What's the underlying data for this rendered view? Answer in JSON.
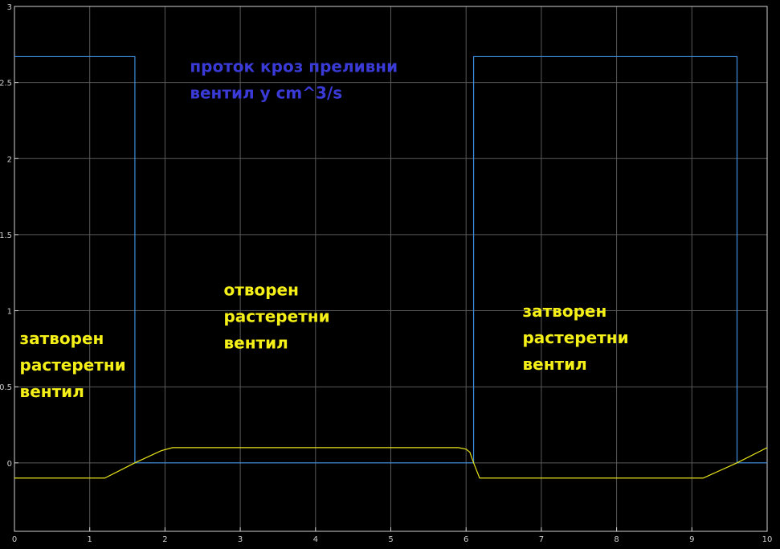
{
  "chart_data": {
    "type": "line",
    "xlim": [
      0,
      10
    ],
    "ylim": [
      -0.45,
      3
    ],
    "grid": true,
    "background": "#000000",
    "grid_color": "#5a5a5a",
    "axis_color": "#d0d0d0",
    "x_ticks": [
      0,
      1,
      2,
      3,
      4,
      5,
      6,
      7,
      8,
      9,
      10
    ],
    "x_tick_labels": [
      "0",
      "1",
      "2",
      "3",
      "4",
      "5",
      "6",
      "7",
      "8",
      "9",
      "10"
    ],
    "y_ticks": [
      0,
      0.5,
      1,
      1.5,
      2,
      2.5,
      3
    ],
    "y_tick_labels": [
      "0",
      "0.5",
      "1",
      "1.5",
      "2",
      "2.5",
      "3"
    ],
    "series": [
      {
        "color": "#3d8ee0",
        "x": [
          0,
          1.6,
          1.6,
          6.1,
          6.1,
          9.6,
          9.6,
          10
        ],
        "y": [
          2.67,
          2.67,
          0,
          0,
          2.67,
          2.67,
          0,
          0
        ]
      },
      {
        "color": "#e8e41a",
        "x": [
          0,
          1.2,
          1.6,
          1.95,
          2.1,
          5.9,
          6.0,
          6.05,
          6.1,
          6.18,
          9.15,
          9.6,
          10
        ],
        "y": [
          -0.1,
          -0.1,
          0,
          0.08,
          0.1,
          0.1,
          0.09,
          0.07,
          0,
          -0.1,
          -0.1,
          0,
          0.1
        ]
      }
    ],
    "annotations": [
      {
        "lines": [
          "проток кроз преливни",
          "вентил у cm^3/s"
        ],
        "color": "#3a3ad6",
        "x": 2.33,
        "y": 2.57
      },
      {
        "lines": [
          "затворен",
          "растеретни",
          "вентил"
        ],
        "color": "#f5f017",
        "x": 0.07,
        "y": 0.78
      },
      {
        "lines": [
          "отворен",
          "растеретни",
          "вентил"
        ],
        "color": "#f5f017",
        "x": 2.78,
        "y": 1.1
      },
      {
        "lines": [
          "затворен",
          "растеретни",
          "вентил"
        ],
        "color": "#f5f017",
        "x": 6.75,
        "y": 0.96
      }
    ]
  }
}
